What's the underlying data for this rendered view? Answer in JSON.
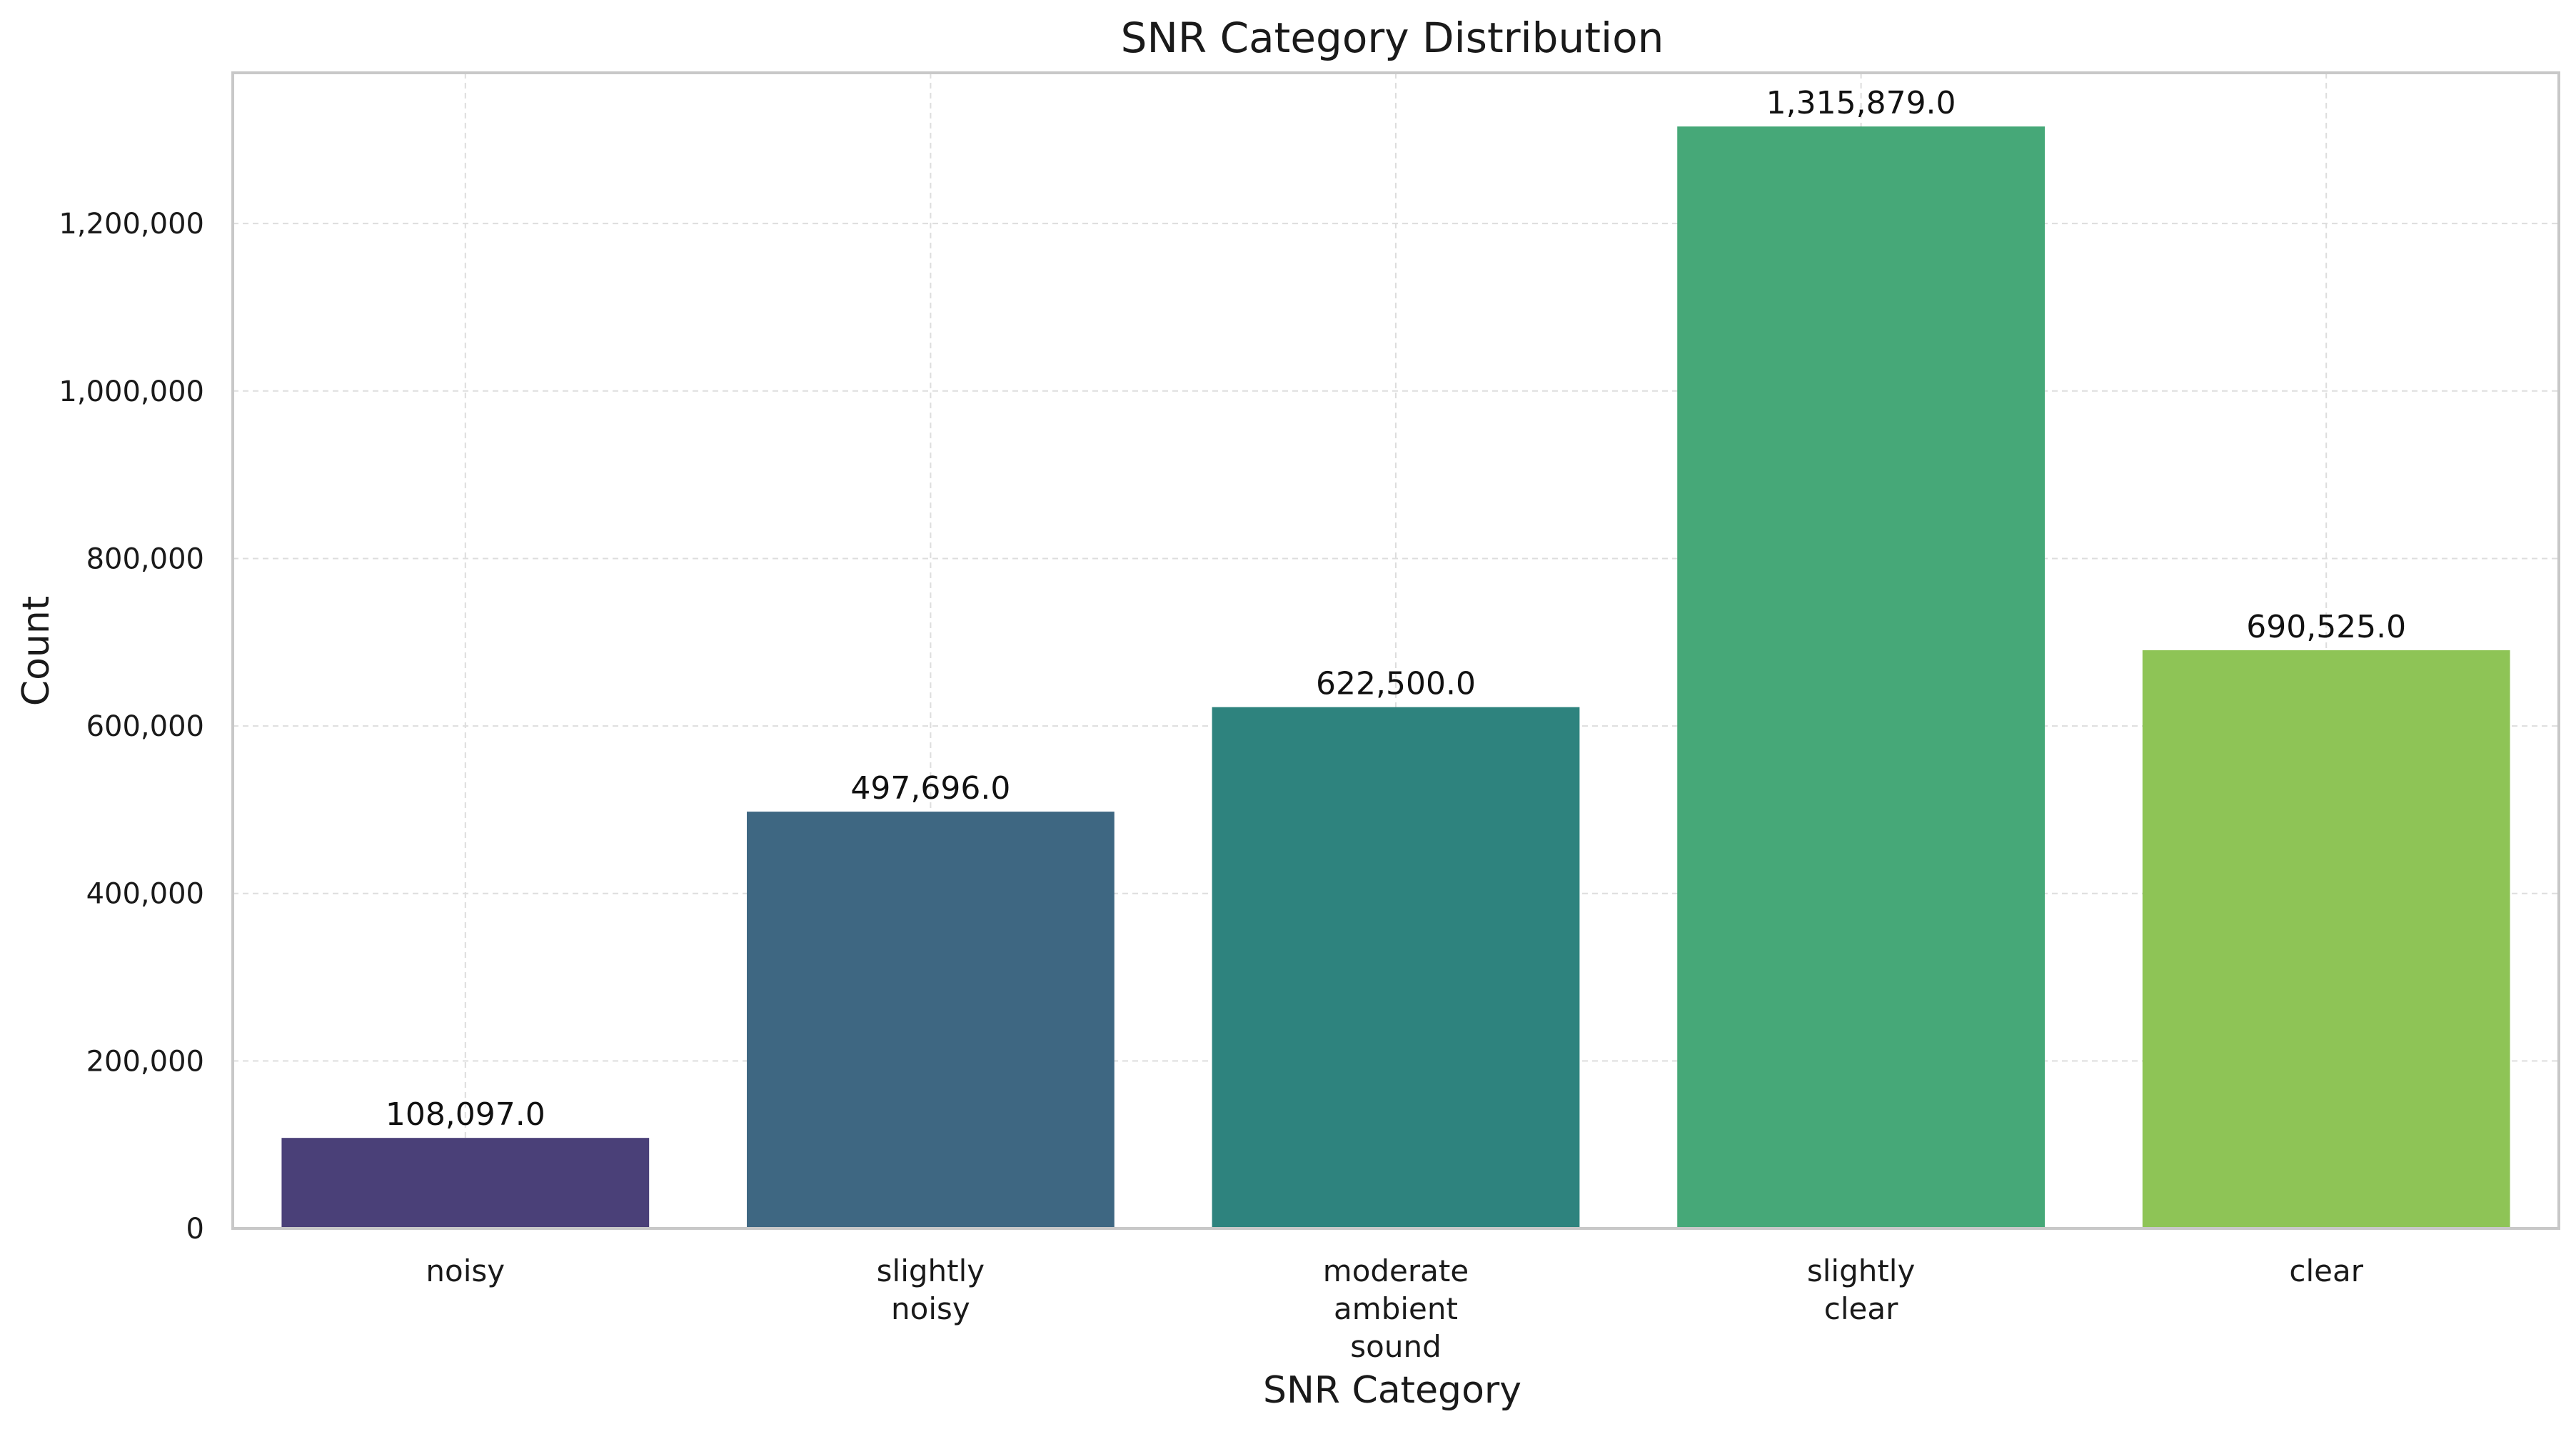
{
  "chart_data": {
    "type": "bar",
    "title": "SNR Category Distribution",
    "xlabel": "SNR Category",
    "ylabel": "Count",
    "categories": [
      [
        "noisy"
      ],
      [
        "slightly",
        "noisy"
      ],
      [
        "moderate",
        "ambient",
        "sound"
      ],
      [
        "slightly",
        "clear"
      ],
      [
        "clear"
      ]
    ],
    "values": [
      108097,
      497696,
      622500,
      1315879,
      690525
    ],
    "value_labels": [
      "108,097.0",
      "497,696.0",
      "622,500.0",
      "1,315,879.0",
      "690,525.0"
    ],
    "colors": [
      "#4a4078",
      "#3e6782",
      "#2e837e",
      "#46a878",
      "#8ec456"
    ],
    "ylim": [
      0,
      1380000
    ],
    "yticks": [
      0,
      200000,
      400000,
      600000,
      800000,
      1000000,
      1200000
    ],
    "ytick_labels": [
      "0",
      "200,000",
      "400,000",
      "600,000",
      "800,000",
      "1,000,000",
      "1,200,000"
    ],
    "grid": true,
    "legend": "none"
  }
}
